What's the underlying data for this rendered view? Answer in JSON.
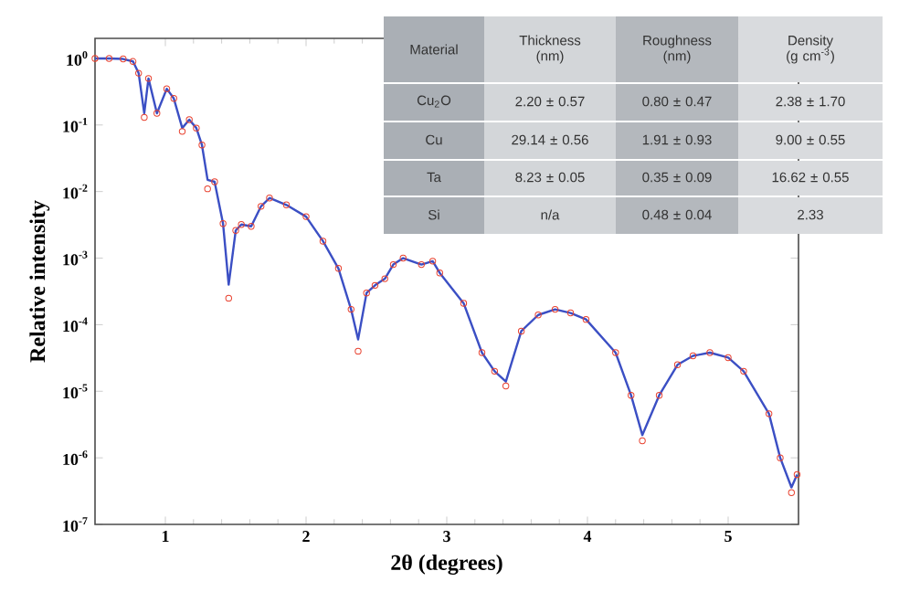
{
  "chart_data": {
    "type": "line",
    "xlabel": "2θ (degrees)",
    "ylabel": "Relative intensity",
    "log": "y",
    "xlim": [
      0.5,
      5.5
    ],
    "xticks": [
      1,
      2,
      3,
      4,
      5
    ],
    "ylim": [
      1e-07,
      2
    ],
    "yticks": [
      {
        "value": 1,
        "label": "10$^{0}$"
      },
      {
        "value": 0.1,
        "label": "10$^{-1}$"
      },
      {
        "value": 0.01,
        "label": "10$^{-2}$"
      },
      {
        "value": 0.001,
        "label": "10$^{-3}$"
      },
      {
        "value": 0.0001,
        "label": "10$^{-4}$"
      },
      {
        "value": 1e-05,
        "label": "10$^{-5}$"
      },
      {
        "value": 1e-06,
        "label": "10$^{-6}$"
      },
      {
        "value": 1e-07,
        "label": "10$^{-7}$"
      }
    ],
    "series": [
      {
        "type": "scatter",
        "color": "#e8412f",
        "marker": "circle",
        "x": [
          0.5,
          0.6,
          0.7,
          0.77,
          0.81,
          0.85,
          0.88,
          0.94,
          1.01,
          1.06,
          1.12,
          1.17,
          1.22,
          1.26,
          1.3,
          1.35,
          1.41,
          1.45,
          1.5,
          1.54,
          1.61,
          1.68,
          1.74,
          1.86,
          2.0,
          2.12,
          2.23,
          2.32,
          2.37,
          2.43,
          2.49,
          2.56,
          2.62,
          2.69,
          2.82,
          2.9,
          2.95,
          3.12,
          3.25,
          3.34,
          3.42,
          3.53,
          3.65,
          3.77,
          3.88,
          3.99,
          4.2,
          4.31,
          4.39,
          4.51,
          4.64,
          4.75,
          4.87,
          5.0,
          5.11,
          5.29,
          5.37,
          5.45,
          5.49
        ],
        "values": [
          1,
          1,
          0.98,
          0.9,
          0.6,
          0.13,
          0.5,
          0.15,
          0.35,
          0.25,
          0.08,
          0.12,
          0.09,
          0.05,
          0.011,
          0.014,
          0.0033,
          0.00025,
          0.0026,
          0.0032,
          0.003,
          0.006,
          0.008,
          0.0063,
          0.0042,
          0.0018,
          0.0007,
          0.00017,
          4e-05,
          0.0003,
          0.00039,
          0.00049,
          0.0008,
          0.001,
          0.0008,
          0.0009,
          0.0006,
          0.00021,
          3.8e-05,
          2e-05,
          1.2e-05,
          8e-05,
          0.00014,
          0.00017,
          0.00015,
          0.00012,
          3.8e-05,
          8.7e-06,
          1.8e-06,
          8.7e-06,
          2.5e-05,
          3.4e-05,
          3.8e-05,
          3.2e-05,
          2e-05,
          4.6e-06,
          1e-06,
          3e-07,
          5.6e-07
        ]
      },
      {
        "color": "#3b4fc4",
        "marker": "none",
        "line_style": "solid",
        "x": [
          0.5,
          0.6,
          0.7,
          0.77,
          0.81,
          0.85,
          0.88,
          0.94,
          1.01,
          1.06,
          1.12,
          1.17,
          1.22,
          1.26,
          1.3,
          1.35,
          1.41,
          1.45,
          1.5,
          1.54,
          1.61,
          1.68,
          1.74,
          1.86,
          2.0,
          2.12,
          2.23,
          2.32,
          2.37,
          2.43,
          2.49,
          2.56,
          2.62,
          2.69,
          2.82,
          2.9,
          2.95,
          3.12,
          3.25,
          3.34,
          3.42,
          3.53,
          3.65,
          3.77,
          3.88,
          3.99,
          4.2,
          4.31,
          4.39,
          4.51,
          4.64,
          4.75,
          4.87,
          5.0,
          5.11,
          5.29,
          5.37,
          5.45,
          5.49
        ],
        "values": [
          1,
          1,
          0.98,
          0.9,
          0.6,
          0.15,
          0.5,
          0.15,
          0.35,
          0.25,
          0.09,
          0.12,
          0.09,
          0.05,
          0.015,
          0.014,
          0.0033,
          0.0004,
          0.0026,
          0.0032,
          0.003,
          0.006,
          0.008,
          0.0063,
          0.0042,
          0.0018,
          0.0007,
          0.00017,
          6e-05,
          0.0003,
          0.00039,
          0.00049,
          0.0008,
          0.001,
          0.0008,
          0.0009,
          0.0006,
          0.00021,
          3.8e-05,
          2e-05,
          1.4e-05,
          8e-05,
          0.00014,
          0.00017,
          0.00015,
          0.00012,
          3.8e-05,
          8.7e-06,
          2.2e-06,
          8.7e-06,
          2.5e-05,
          3.4e-05,
          3.8e-05,
          3.2e-05,
          2e-05,
          4.6e-06,
          1e-06,
          3.6e-07,
          5.6e-07
        ]
      }
    ],
    "annotations": [
      "Material",
      "Thickness (nm)",
      "Roughness (nm)",
      "Density (g cm$^{-3}$)",
      "Cu$_{2}$O",
      "2.20 ± 0.57",
      "0.80 ± 0.47",
      "2.38 ± 1.70",
      "Cu",
      "29.14 ± 0.56",
      "1.91 ± 0.93",
      "9.00 ± 0.55",
      "Ta",
      "8.23 ± 0.05",
      "0.35 ± 0.09",
      "16.62 ± 0.55",
      "Si",
      "n/a",
      "0.48 ± 0.04",
      "2.33"
    ]
  }
}
